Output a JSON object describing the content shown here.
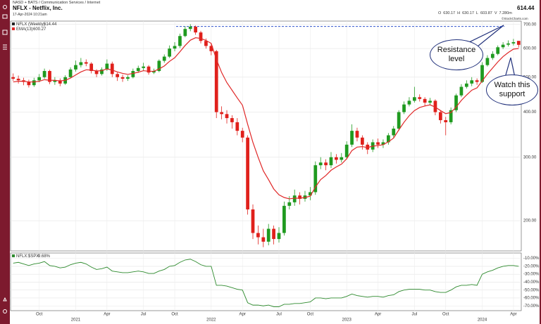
{
  "header": {
    "exchange": "NASD + BATS / Communication Services / Internet",
    "title": "NFLX - Netflix, Inc.",
    "date": "17-Apr-2024 10:21am",
    "ohlc_labels": [
      "O",
      "H",
      "L"
    ],
    "volume_label": "V",
    "volume": "7.280m",
    "credit": "©StockCharts.com"
  },
  "chart_data": [
    {
      "type": "candlestick",
      "log_scale": true,
      "grid": true,
      "ylim": [
        165,
        715
      ],
      "yticks": [
        {
          "value": 700,
          "label": "700.00"
        },
        {
          "value": 600,
          "label": "600.00"
        },
        {
          "value": 500,
          "label": "500.00"
        },
        {
          "value": 400,
          "label": "400.00"
        },
        {
          "value": 300,
          "label": "300.00"
        },
        {
          "value": 200,
          "label": "200.00"
        }
      ],
      "reference_line": 691,
      "reference_color": "#3355cc",
      "annotations": [
        "Resistance level",
        "Watch this support"
      ],
      "series": [
        {
          "name": "NFLX (Weekly)",
          "up_color": "#1f9a1f",
          "down_color": "#e0201b",
          "open": [
            500,
            495,
            490,
            485,
            475,
            490,
            500,
            520,
            485,
            490,
            480,
            500,
            525,
            540,
            550,
            545,
            520,
            510,
            525,
            545,
            510,
            500,
            495,
            500,
            520,
            530,
            535,
            515,
            520,
            555,
            570,
            600,
            610,
            650,
            680,
            690,
            665,
            630,
            610,
            590,
            400,
            395,
            385,
            375,
            355,
            340,
            215,
            185,
            180,
            175,
            190,
            178,
            185,
            220,
            225,
            235,
            230,
            235,
            240,
            285,
            290,
            285,
            300,
            295,
            300,
            325,
            355,
            340,
            325,
            315,
            330,
            325,
            330,
            345,
            360,
            400,
            420,
            430,
            440,
            435,
            425,
            430,
            400,
            380,
            375,
            405,
            445,
            470,
            480,
            490,
            485,
            540,
            565,
            580,
            605,
            615,
            620,
            630.17
          ],
          "high": [
            512,
            505,
            498,
            492,
            498,
            510,
            528,
            524,
            500,
            496,
            506,
            532,
            556,
            565,
            560,
            550,
            526,
            532,
            560,
            552,
            515,
            508,
            506,
            528,
            538,
            548,
            540,
            528,
            560,
            578,
            612,
            625,
            660,
            692,
            701,
            695,
            672,
            640,
            618,
            595,
            415,
            405,
            392,
            385,
            362,
            345,
            222,
            194,
            190,
            196,
            194,
            192,
            226,
            234,
            244,
            240,
            242,
            248,
            292,
            300,
            296,
            310,
            306,
            308,
            332,
            370,
            362,
            345,
            330,
            336,
            338,
            336,
            350,
            366,
            405,
            428,
            440,
            470,
            448,
            440,
            438,
            434,
            405,
            388,
            412,
            450,
            478,
            490,
            500,
            496,
            550,
            575,
            590,
            612,
            625,
            632,
            638,
            630.17
          ],
          "low": [
            488,
            480,
            475,
            468,
            470,
            484,
            495,
            478,
            476,
            472,
            476,
            496,
            518,
            532,
            536,
            512,
            500,
            505,
            520,
            500,
            488,
            485,
            488,
            496,
            514,
            522,
            508,
            510,
            516,
            548,
            565,
            590,
            602,
            645,
            670,
            655,
            620,
            600,
            575,
            385,
            382,
            372,
            360,
            345,
            330,
            208,
            178,
            172,
            169,
            171,
            172,
            174,
            182,
            215,
            220,
            222,
            226,
            228,
            236,
            278,
            276,
            280,
            288,
            290,
            296,
            320,
            332,
            315,
            306,
            310,
            318,
            318,
            325,
            340,
            355,
            395,
            415,
            425,
            428,
            415,
            418,
            392,
            372,
            345,
            370,
            400,
            440,
            465,
            472,
            476,
            482,
            535,
            558,
            575,
            598,
            608,
            612,
            603.87
          ],
          "close": [
            495,
            490,
            485,
            475,
            490,
            500,
            520,
            485,
            490,
            480,
            500,
            525,
            540,
            550,
            545,
            520,
            510,
            525,
            545,
            510,
            500,
            495,
            500,
            520,
            530,
            535,
            515,
            520,
            555,
            570,
            600,
            610,
            650,
            680,
            690,
            665,
            630,
            610,
            590,
            400,
            395,
            385,
            375,
            355,
            340,
            215,
            185,
            180,
            175,
            190,
            178,
            185,
            220,
            225,
            235,
            230,
            235,
            240,
            285,
            290,
            285,
            300,
            295,
            300,
            325,
            355,
            340,
            325,
            315,
            330,
            325,
            330,
            345,
            360,
            400,
            420,
            430,
            440,
            435,
            425,
            430,
            400,
            380,
            375,
            405,
            445,
            470,
            480,
            490,
            485,
            540,
            565,
            580,
            605,
            615,
            620,
            625,
            614.44
          ]
        },
        {
          "name": "EMA(13)",
          "color": "#e02828",
          "values": [
            485,
            487,
            487,
            485,
            485,
            487,
            492,
            490,
            490,
            488,
            490,
            497,
            507,
            517,
            524,
            523,
            520,
            521,
            527,
            523,
            517,
            512,
            509,
            512,
            516,
            521,
            519,
            519,
            527,
            537,
            553,
            566,
            588,
            612,
            633,
            643,
            640,
            632,
            620,
            560,
            515,
            483,
            460,
            438,
            418,
            370,
            330,
            300,
            275,
            260,
            245,
            236,
            232,
            230,
            231,
            231,
            232,
            234,
            248,
            260,
            267,
            276,
            282,
            287,
            297,
            313,
            320,
            321,
            319,
            322,
            323,
            325,
            331,
            339,
            357,
            375,
            391,
            404,
            412,
            416,
            419,
            413,
            404,
            396,
            399,
            413,
            431,
            446,
            460,
            467,
            488,
            510,
            530,
            551,
            570,
            585,
            598,
            600.27
          ]
        }
      ]
    },
    {
      "type": "line",
      "ylim": [
        -76,
        -5
      ],
      "yticks": [
        {
          "value": -10,
          "label": "-10.00%"
        },
        {
          "value": -20,
          "label": "-20.00%"
        },
        {
          "value": -30,
          "label": "-30.00%"
        },
        {
          "value": -40,
          "label": "-40.00%"
        },
        {
          "value": -50,
          "label": "-50.00%"
        },
        {
          "value": -60,
          "label": "-60.00%"
        },
        {
          "value": -70,
          "label": "-70.00%"
        }
      ],
      "change_label": "-9.68%",
      "categories": [
        null,
        null,
        null,
        null,
        null,
        "Oct",
        null,
        null,
        null,
        null,
        null,
        null,
        "2021",
        null,
        null,
        null,
        null,
        null,
        "Apr",
        null,
        null,
        null,
        null,
        null,
        null,
        "Jul",
        null,
        null,
        null,
        null,
        null,
        "Oct",
        null,
        null,
        null,
        null,
        null,
        null,
        "2022",
        null,
        null,
        null,
        null,
        null,
        "Apr",
        null,
        null,
        null,
        null,
        null,
        null,
        "Jul",
        null,
        null,
        null,
        null,
        null,
        "Oct",
        null,
        null,
        null,
        null,
        null,
        null,
        "2023",
        null,
        null,
        null,
        null,
        null,
        "Apr",
        null,
        null,
        null,
        null,
        null,
        null,
        "Jul",
        null,
        null,
        null,
        null,
        null,
        "Oct",
        null,
        null,
        null,
        null,
        null,
        null,
        "2024",
        null,
        null,
        null,
        null,
        null,
        "Apr",
        null
      ],
      "series": [
        {
          "name": "NFLX:$SPX",
          "color": "#2d8a2d",
          "values": [
            -16,
            -15,
            -17,
            -19,
            -17,
            -16,
            -14,
            -19,
            -20,
            -22,
            -21,
            -18,
            -16,
            -15,
            -17,
            -21,
            -24,
            -23,
            -21,
            -26,
            -27,
            -28,
            -28,
            -27,
            -26,
            -27,
            -29,
            -29,
            -26,
            -24,
            -20,
            -19,
            -15,
            -12,
            -11,
            -14,
            -18,
            -20,
            -20,
            -44,
            -44,
            -45,
            -47,
            -49,
            -50,
            -66,
            -69,
            -69,
            -70,
            -69,
            -71,
            -71,
            -68,
            -68,
            -67,
            -67,
            -66,
            -65,
            -60,
            -60,
            -61,
            -60,
            -60,
            -60,
            -58,
            -55,
            -57,
            -58,
            -59,
            -58,
            -58,
            -59,
            -57,
            -56,
            -52,
            -50,
            -49,
            -49,
            -49,
            -50,
            -50,
            -52,
            -53,
            -53,
            -50,
            -46,
            -44,
            -44,
            -43,
            -44,
            -30,
            -27,
            -25,
            -22,
            -20,
            -19,
            -19,
            -20
          ]
        }
      ]
    }
  ]
}
